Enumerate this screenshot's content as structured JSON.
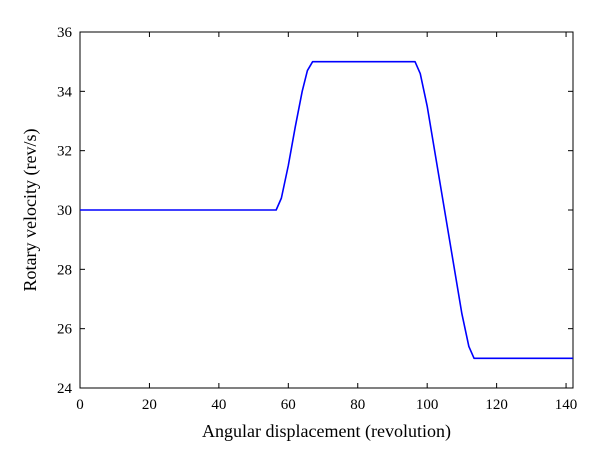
{
  "chart_data": {
    "type": "line",
    "title": "",
    "xlabel": "Angular displacement (revolution)",
    "ylabel": "Rotary velocity (rev/s)",
    "xlim": [
      0,
      142
    ],
    "ylim": [
      24,
      36
    ],
    "xticks": [
      0,
      20,
      40,
      60,
      80,
      100,
      120,
      140
    ],
    "yticks": [
      24,
      26,
      28,
      30,
      32,
      34,
      36
    ],
    "grid": false,
    "legend": "none",
    "series": [
      {
        "color": "#0000ff",
        "x": [
          0,
          56.5,
          58,
          60,
          62,
          64,
          65.5,
          67,
          96.5,
          98,
          100,
          105,
          110,
          112,
          113.5,
          142
        ],
        "y": [
          30,
          30,
          30.4,
          31.5,
          32.8,
          34.0,
          34.7,
          35,
          35,
          34.6,
          33.5,
          30.0,
          26.5,
          25.4,
          25,
          25
        ]
      }
    ]
  }
}
